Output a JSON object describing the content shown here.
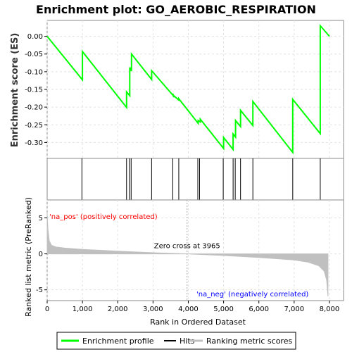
{
  "chart_data": {
    "type": "line",
    "title": "Enrichment plot: GO_AEROBIC_RESPIRATION",
    "enrichment_panel": {
      "ylabel": "Enrichment score (ES)",
      "ylim": [
        -0.345,
        0.045
      ],
      "yticks": [
        "0.00",
        "-0.05",
        "-0.10",
        "-0.15",
        "-0.20",
        "-0.25",
        "-0.30"
      ],
      "ytick_values": [
        0.0,
        -0.05,
        -0.1,
        -0.15,
        -0.2,
        -0.25,
        -0.3
      ],
      "grid": true,
      "series": [
        {
          "name": "Enrichment profile",
          "color": "#00ff00",
          "x": [
            0,
            1000,
            1000,
            2250,
            2250,
            2340,
            2340,
            2390,
            2390,
            2960,
            2960,
            3560,
            3560,
            3590,
            3590,
            3730,
            3730,
            4280,
            4280,
            4340,
            4340,
            5000,
            5000,
            5270,
            5270,
            5340,
            5340,
            5480,
            5480,
            5830,
            5830,
            6960,
            6960,
            7740,
            7740,
            8000
          ],
          "y": [
            0.0,
            -0.123,
            -0.043,
            -0.201,
            -0.157,
            -0.168,
            -0.088,
            -0.098,
            -0.05,
            -0.122,
            -0.097,
            -0.166,
            -0.162,
            -0.172,
            -0.168,
            -0.18,
            -0.176,
            -0.246,
            -0.238,
            -0.242,
            -0.234,
            -0.317,
            -0.286,
            -0.32,
            -0.276,
            -0.285,
            -0.238,
            -0.255,
            -0.209,
            -0.252,
            -0.184,
            -0.328,
            -0.178,
            -0.275,
            0.03,
            0.0
          ]
        }
      ]
    },
    "hits": {
      "label": "Hits",
      "color": "#000000",
      "positions": [
        985,
        2250,
        2330,
        2380,
        2960,
        3560,
        3730,
        4270,
        4320,
        4990,
        5270,
        5330,
        5480,
        5830,
        6960,
        7740
      ]
    },
    "rank_bar": {
      "segments": [
        {
          "from": 0,
          "to": 1300,
          "color": "#f25a5a"
        },
        {
          "from": 1300,
          "to": 2150,
          "color": "#f57878"
        },
        {
          "from": 2150,
          "to": 3000,
          "color": "#f59494"
        },
        {
          "from": 3000,
          "to": 3960,
          "color": "#f8c4e0"
        },
        {
          "from": 3960,
          "to": 5000,
          "color": "#d7d7f8"
        },
        {
          "from": 5000,
          "to": 5880,
          "color": "#b7b7f6"
        },
        {
          "from": 5880,
          "to": 6450,
          "color": "#8282ee"
        },
        {
          "from": 6450,
          "to": 7650,
          "color": "#6363e8"
        },
        {
          "from": 7650,
          "to": 7960,
          "color": "#2020cc"
        }
      ]
    },
    "ranked_panel": {
      "xlabel": "Rank in Ordered Dataset",
      "ylabel": "Ranked list metric (PreRanked)",
      "ylim": [
        -6.5,
        7.5
      ],
      "yticks": [
        "5",
        "0",
        "-5"
      ],
      "ytick_values": [
        5,
        0,
        -5
      ],
      "xticks": [
        "0",
        "1,000",
        "2,000",
        "3,000",
        "4,000",
        "5,000",
        "6,000",
        "7,000",
        "8,000"
      ],
      "xtick_values": [
        0,
        1000,
        2000,
        3000,
        4000,
        5000,
        6000,
        7000,
        8000
      ],
      "xlim": [
        0,
        8400
      ],
      "metric_profile": {
        "name": "Ranking metric scores",
        "color": "#c0c0c0",
        "x": [
          0,
          20,
          60,
          120,
          250,
          500,
          1000,
          2000,
          3000,
          3965,
          5000,
          6000,
          7000,
          7400,
          7700,
          7850,
          7920,
          7960
        ],
        "y": [
          5.8,
          3.5,
          1.8,
          1.2,
          0.95,
          0.8,
          0.62,
          0.38,
          0.16,
          0.0,
          -0.22,
          -0.5,
          -0.85,
          -1.15,
          -1.65,
          -2.4,
          -3.6,
          -5.9
        ]
      },
      "zero_cross_rank": 3965,
      "annotations": {
        "zero_cross": "Zero cross at 3965",
        "pos_label": "'na_pos' (positively correlated)",
        "neg_label": "'na_neg' (negatively correlated)"
      },
      "pos_color": "#ff0000",
      "neg_color": "#0000ff"
    },
    "legend": {
      "placement": "bottom",
      "entries": [
        {
          "label": "Enrichment profile",
          "color": "#00ff00"
        },
        {
          "label": "Hits",
          "color": "#000000"
        },
        {
          "label": "Ranking metric scores",
          "color": "#c0c0c0"
        }
      ]
    }
  }
}
